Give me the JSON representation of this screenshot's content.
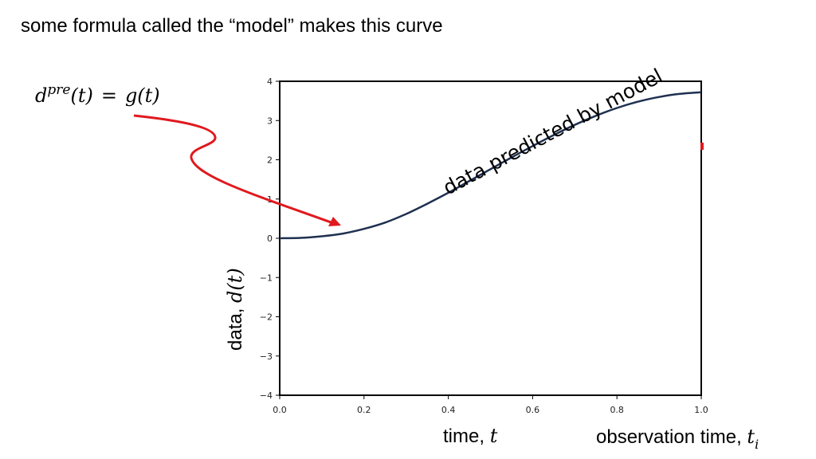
{
  "slide": {
    "title": "some formula called the “model” makes this curve"
  },
  "formula": {
    "lhs_base": "d",
    "lhs_sup": "pre",
    "lhs_arg": "(t)",
    "equals": "=",
    "rhs": "g(t)"
  },
  "labels": {
    "ylabel_text": "data, ",
    "ylabel_math": "d(t)",
    "xlabel_text": "time, ",
    "xlabel_math": "t",
    "obs_text": "observation time, ",
    "obs_math": "t",
    "obs_sub": "i"
  },
  "colors": {
    "curve": "#1f3050",
    "arrow": "#e0191e",
    "frame": "#000000"
  },
  "chart_data": {
    "type": "line",
    "xlim": [
      0.0,
      1.0
    ],
    "ylim": [
      -4,
      4
    ],
    "xticks": [
      "0.0",
      "0.2",
      "0.4",
      "0.6",
      "0.8",
      "1.0"
    ],
    "yticks": [
      "−4",
      "−3",
      "−2",
      "−1",
      "0",
      "1",
      "2",
      "3",
      "4"
    ],
    "xlabel": "time, t",
    "ylabel": "data, d(t)",
    "grid": false,
    "annotation": "data  predicted  by model",
    "series": [
      {
        "x": [
          0.0,
          0.05,
          0.1,
          0.15,
          0.2,
          0.25,
          0.3,
          0.35,
          0.4,
          0.45,
          0.5,
          0.55,
          0.6,
          0.65,
          0.7,
          0.75,
          0.8,
          0.85,
          0.9,
          0.95,
          1.0
        ],
        "y": [
          0.0,
          0.01,
          0.05,
          0.12,
          0.24,
          0.4,
          0.62,
          0.88,
          1.16,
          1.46,
          1.76,
          2.06,
          2.35,
          2.63,
          2.89,
          3.12,
          3.32,
          3.48,
          3.6,
          3.68,
          3.72
        ]
      }
    ]
  }
}
